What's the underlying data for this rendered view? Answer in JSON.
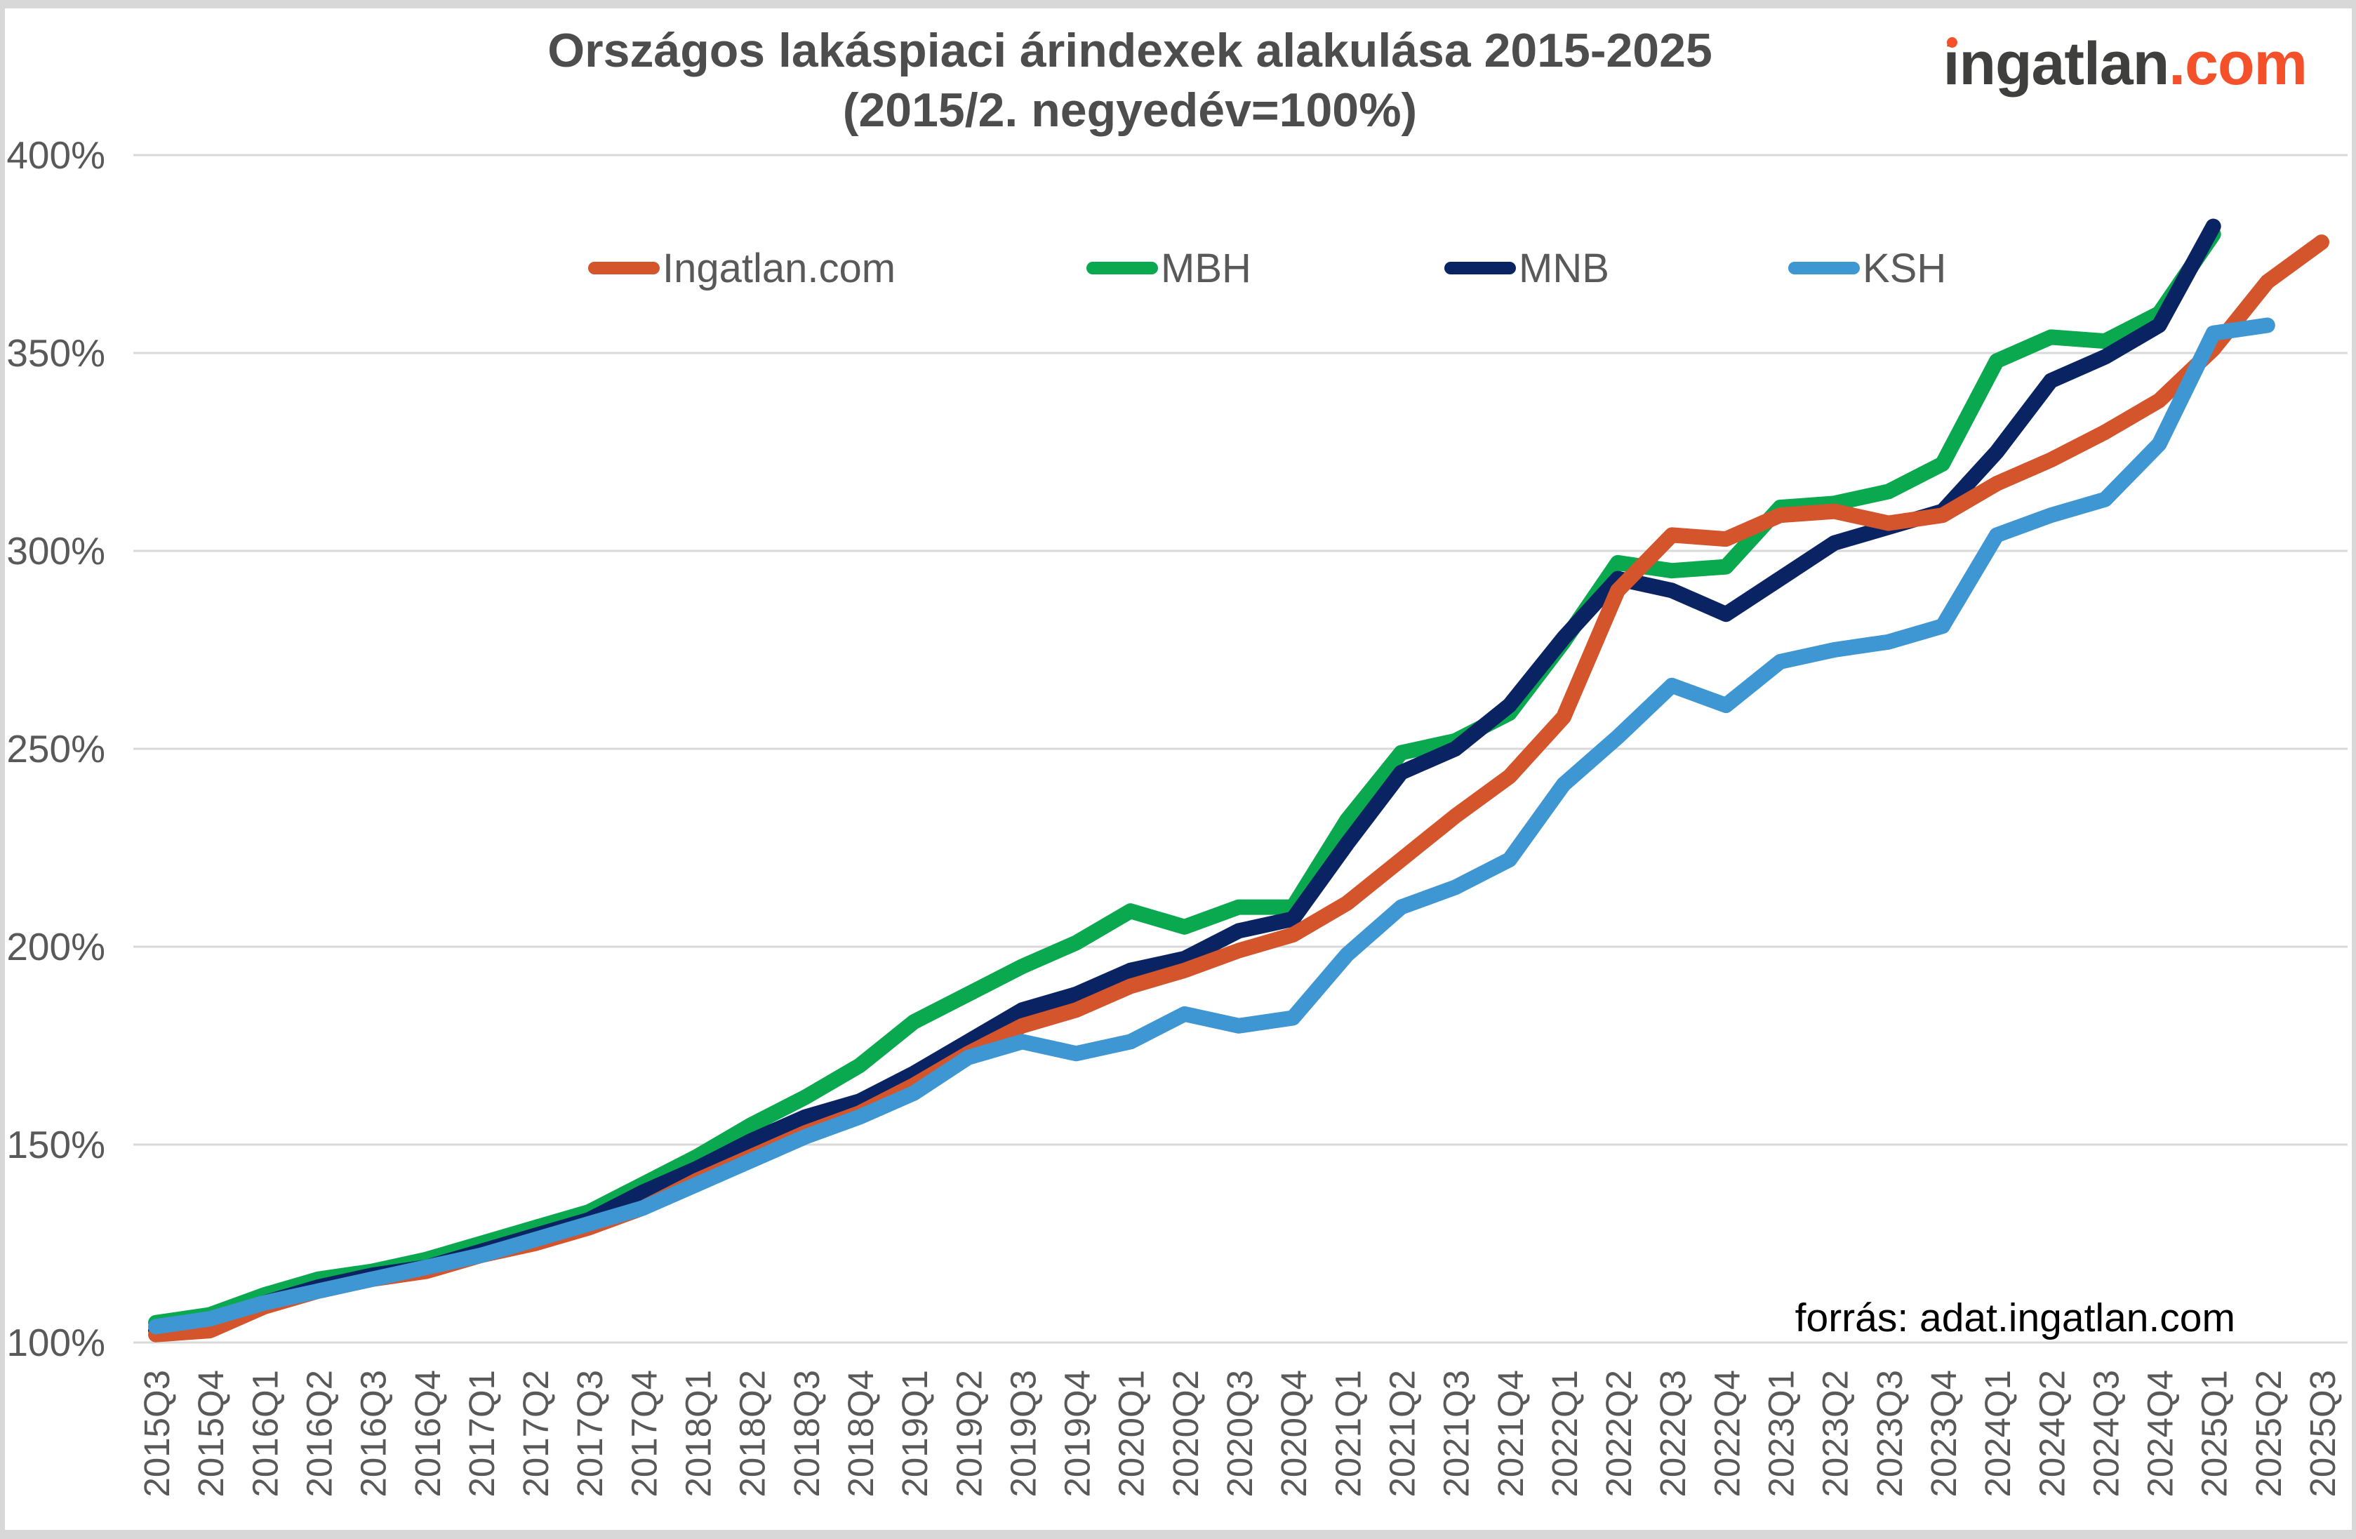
{
  "window": {
    "background": "#ffffff",
    "edge_color": "#d8d8d8"
  },
  "header": {
    "title_line1": "Országos lakáspiaci árindexek alakulása 2015-2025",
    "title_line2": "(2015/2. negyedév=100%)",
    "title_color": "#4d4d4d"
  },
  "logo": {
    "text_start": "ngatlan",
    "text_i": "i",
    "text_suffix": ".com",
    "color_main": "#3f3f3e",
    "color_accent": "#f4502a"
  },
  "footer": {
    "source_label": "forrás: adat.ingatlan.com"
  },
  "chart_data": {
    "type": "line",
    "title": "Országos lakáspiaci árindexek alakulása 2015-2025 (2015/2. negyedév=100%)",
    "xlabel": "",
    "ylabel": "",
    "ylim": [
      100,
      400
    ],
    "grid": true,
    "legend_position": "top",
    "gridline_color": "#d9d9d9",
    "tick_label_color": "#595959",
    "y_ticks": [
      {
        "value": 400,
        "label": "400%"
      },
      {
        "value": 350,
        "label": "350%"
      },
      {
        "value": 300,
        "label": "300%"
      },
      {
        "value": 250,
        "label": "250%"
      },
      {
        "value": 200,
        "label": "200%"
      },
      {
        "value": 150,
        "label": "150%"
      },
      {
        "value": 100,
        "label": "100%"
      }
    ],
    "categories": [
      "2015Q3",
      "2015Q4",
      "2016Q1",
      "2016Q2",
      "2016Q3",
      "2016Q4",
      "2017Q1",
      "2017Q2",
      "2017Q3",
      "2017Q4",
      "2018Q1",
      "2018Q2",
      "2018Q3",
      "2018Q4",
      "2019Q1",
      "2019Q2",
      "2019Q3",
      "2019Q4",
      "2020Q1",
      "2020Q2",
      "2020Q3",
      "2020Q4",
      "2021Q1",
      "2021Q2",
      "2021Q3",
      "2021Q4",
      "2022Q1",
      "2022Q2",
      "2022Q3",
      "2022Q4",
      "2023Q1",
      "2023Q2",
      "2023Q3",
      "2023Q4",
      "2024Q1",
      "2024Q2",
      "2024Q3",
      "2024Q4",
      "2025Q1",
      "2025Q2",
      "2025Q3"
    ],
    "series": [
      {
        "name": "Ingatlan.com",
        "color": "#d4552b",
        "values": [
          102,
          103,
          109,
          113,
          116,
          118,
          122,
          125,
          129,
          134,
          141,
          147,
          153,
          158,
          165,
          173,
          180,
          184,
          190,
          194,
          199,
          203,
          211,
          222,
          233,
          243,
          258,
          290,
          304,
          303,
          309,
          310,
          307,
          309,
          317,
          323,
          330,
          338,
          351,
          368,
          378
        ]
      },
      {
        "name": "MBH",
        "color": "#0aa84f",
        "values": [
          105,
          107,
          112,
          116,
          118,
          121,
          125,
          129,
          133,
          140,
          147,
          155,
          162,
          170,
          181,
          188,
          195,
          201,
          209,
          205,
          210,
          210,
          232,
          249,
          252,
          259,
          277,
          297,
          295,
          296,
          311,
          312,
          315,
          322,
          348,
          354,
          353,
          360,
          380,
          null,
          null
        ]
      },
      {
        "name": "MNB",
        "color": "#0a2363",
        "values": [
          103,
          104,
          110,
          114,
          117,
          119,
          123,
          127,
          131,
          138,
          144,
          151,
          157,
          161,
          168,
          176,
          184,
          188,
          194,
          197,
          204,
          207,
          226,
          244,
          250,
          261,
          278,
          293,
          290,
          284,
          293,
          302,
          306,
          310,
          325,
          343,
          349,
          357,
          382,
          null,
          null
        ]
      },
      {
        "name": "KSH",
        "color": "#3e96d2",
        "values": [
          104,
          106,
          110,
          113,
          116,
          119,
          122,
          126,
          130,
          134,
          140,
          146,
          152,
          157,
          163,
          172,
          176,
          173,
          176,
          183,
          180,
          182,
          198,
          210,
          215,
          222,
          241,
          253,
          266,
          261,
          272,
          275,
          277,
          281,
          304,
          309,
          313,
          327,
          355,
          357,
          null
        ]
      }
    ],
    "draw_order": [
      1,
      2,
      0,
      3
    ],
    "legend_x_positions": [
      838,
      1548,
      2058,
      2548
    ]
  }
}
